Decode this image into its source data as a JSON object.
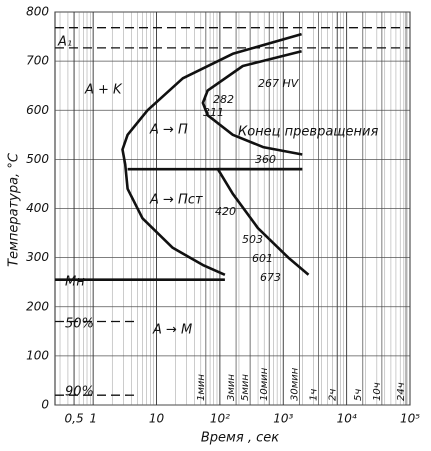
{
  "chart_data": {
    "type": "line",
    "x_scale": "log",
    "grid": true,
    "color": "#111111",
    "xlabel": "Время , сек",
    "ylabel": "Температура, °С",
    "xlim": [
      0.25,
      100000
    ],
    "ylim": [
      0,
      800
    ],
    "yticks": [
      0,
      100,
      200,
      300,
      400,
      500,
      600,
      700,
      800
    ],
    "xticks": [
      {
        "value": 0.5,
        "label": "0,5"
      },
      1,
      10,
      {
        "value": 100,
        "label": "10²"
      },
      {
        "value": 1000,
        "label": "10³"
      },
      {
        "value": 10000,
        "label": "10⁴"
      },
      {
        "value": 100000,
        "label": "10⁵"
      }
    ],
    "time_marks": [
      {
        "value": 60,
        "label": "1мин"
      },
      {
        "value": 180,
        "label": "3мин"
      },
      {
        "value": 300,
        "label": "5мин"
      },
      {
        "value": 600,
        "label": "10мин"
      },
      {
        "value": 1800,
        "label": "30мин"
      },
      {
        "value": 3600,
        "label": "1ч"
      },
      {
        "value": 7200,
        "label": "2ч"
      },
      {
        "value": 18000,
        "label": "5ч"
      },
      {
        "value": 36000,
        "label": "10ч"
      },
      {
        "value": 86400,
        "label": "24ч"
      }
    ],
    "series": [
      {
        "x": [
          1950,
          160,
          26,
          7.2,
          3.5,
          2.9,
          3.2,
          3.5,
          6,
          18,
          54,
          120
        ],
        "values": [
          755,
          715,
          665,
          600,
          550,
          520,
          490,
          440,
          380,
          320,
          285,
          265
        ],
        "dash": false
      },
      {
        "x": [
          1950,
          230,
          64,
          54,
          64,
          160,
          480,
          2000
        ],
        "values": [
          720,
          690,
          640,
          615,
          590,
          550,
          525,
          510
        ],
        "dash": false
      },
      {
        "x": [
          3.5,
          2000
        ],
        "values": [
          480,
          480
        ],
        "dash": false
      },
      {
        "x": [
          2000,
          93,
          160,
          400,
          1200,
          2500
        ],
        "values": [
          480,
          480,
          430,
          360,
          300,
          265
        ],
        "dash": false
      },
      {
        "x": [
          0.25,
          120
        ],
        "values": [
          255,
          255
        ],
        "dash": false
      },
      {
        "x": [
          0.25,
          100000
        ],
        "values": [
          768,
          768
        ],
        "dash": true
      },
      {
        "x": [
          0.25,
          100000
        ],
        "values": [
          727,
          727
        ],
        "dash": true
      },
      {
        "x": [
          0.25,
          5
        ],
        "values": [
          170,
          170
        ],
        "dash": true
      },
      {
        "x": [
          0.25,
          5
        ],
        "values": [
          20,
          20
        ],
        "dash": true
      }
    ],
    "annotations": [
      "A₁",
      "A + K",
      "A → П",
      "A → Пст",
      "A → M",
      "Mн",
      "50%",
      "90%",
      "Конец превращения",
      "267 HV",
      "282",
      "311",
      "360",
      "420",
      "503",
      "601",
      "673"
    ]
  }
}
